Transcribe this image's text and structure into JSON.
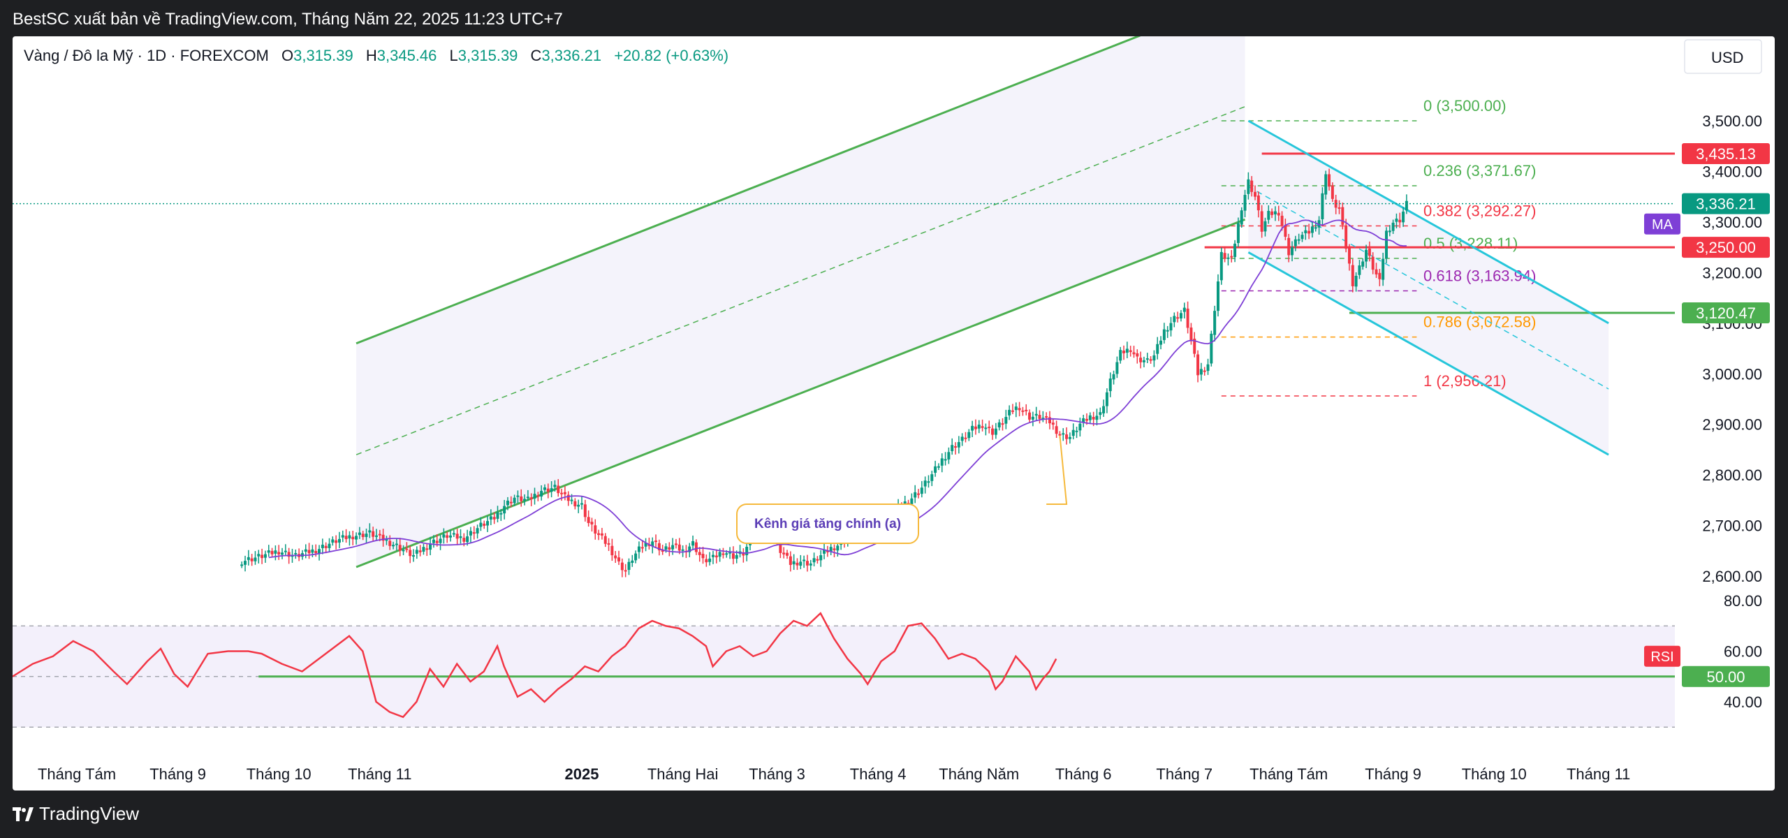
{
  "header": {
    "published_by": "BestSC xuất bản về TradingView.com, Tháng Năm 22, 2025 11:23 UTC+7"
  },
  "footer": {
    "brand": "TradingView"
  },
  "legend": {
    "symbol": "Vàng / Đô la Mỹ · 1D · FOREXCOM",
    "o_label": "O",
    "o_value": "3,315.39",
    "h_label": "H",
    "h_value": "3,345.46",
    "l_label": "L",
    "l_value": "3,315.39",
    "c_label": "C",
    "c_value": "3,336.21",
    "change": "+20.82 (+0.63%)"
  },
  "currency_button": "USD",
  "colors": {
    "up": "#089981",
    "down": "#f23645",
    "ma": "#7e3fd6",
    "channel": "#4caf50",
    "down_channel": "#26c6da",
    "fib_green": "#4caf50",
    "fib_red": "#f23645",
    "fib_purple": "#9c27b0",
    "fib_orange": "#ff9800",
    "rsi": "#f23645",
    "rsi_mid": "#4caf50"
  },
  "annotation": {
    "text": "Kênh giá tăng chính (a)"
  },
  "fib_levels": [
    {
      "label": "0 (3,500.00)",
      "price": 3500,
      "color": "#4caf50"
    },
    {
      "label": "0.236 (3,371.67)",
      "price": 3371.67,
      "color": "#4caf50"
    },
    {
      "label": "0.382 (3,292.27)",
      "price": 3292.27,
      "color": "#f23645"
    },
    {
      "label": "0.5 (3,228.11)",
      "price": 3228.11,
      "color": "#4caf50"
    },
    {
      "label": "0.618 (3,163.94)",
      "price": 3163.94,
      "color": "#9c27b0"
    },
    {
      "label": "0.786 (3,072.58)",
      "price": 3072.58,
      "color": "#ff9800"
    },
    {
      "label": "1 (2,956.21)",
      "price": 2956.21,
      "color": "#f23645"
    }
  ],
  "price_tags": [
    {
      "label": "3,435.13",
      "price": 3435.13,
      "color": "#f23645"
    },
    {
      "label": "3,336.21",
      "price": 3336.21,
      "color": "#089981"
    },
    {
      "label": "3,250.00",
      "price": 3250.0,
      "color": "#f23645"
    },
    {
      "label": "3,120.47",
      "price": 3120.47,
      "color": "#4caf50"
    }
  ],
  "ma_badge": "MA",
  "rsi_badge": "RSI",
  "rsi_tag": {
    "label": "50.00",
    "value": 50
  },
  "chart_data": [
    {
      "type": "candlestick",
      "title": "Vàng / Đô la Mỹ · 1D · FOREXCOM",
      "y_ticks": [
        "3,500.00",
        "3,400.00",
        "3,300.00",
        "3,200.00",
        "3,100.00",
        "3,000.00",
        "2,900.00",
        "2,800.00",
        "2,700.00",
        "2,600.00"
      ],
      "y_tick_values": [
        3500,
        3400,
        3300,
        3200,
        3100,
        3000,
        2900,
        2800,
        2700,
        2600
      ],
      "x_ticks": [
        "Tháng Tám",
        "Tháng 9",
        "Tháng 10",
        "Tháng 11",
        "2025",
        "Tháng Hai",
        "Tháng 3",
        "Tháng 4",
        "Tháng Năm",
        "Tháng 6",
        "Tháng 7",
        "Tháng Tám",
        "Tháng 9",
        "Tháng 10",
        "Tháng 11"
      ],
      "x_tick_bold": [
        false,
        false,
        false,
        false,
        true,
        false,
        false,
        false,
        false,
        false,
        false,
        false,
        false,
        false,
        false
      ],
      "x_tick_days": [
        0,
        30,
        60,
        90,
        150,
        180,
        208,
        238,
        268,
        299,
        329,
        360,
        391,
        421,
        452
      ],
      "ylim": [
        2565,
        3670
      ],
      "series": [
        {
          "name": "Vàng / Đô la Mỹ",
          "close_path": [
            [
              49,
              2630
            ],
            [
              55,
              2640
            ],
            [
              60,
              2650
            ],
            [
              65,
              2640
            ],
            [
              70,
              2650
            ],
            [
              72,
              2655
            ],
            [
              77,
              2670
            ],
            [
              82,
              2680
            ],
            [
              87,
              2685
            ],
            [
              92,
              2670
            ],
            [
              95,
              2660
            ],
            [
              100,
              2640
            ],
            [
              105,
              2665
            ],
            [
              110,
              2680
            ],
            [
              115,
              2675
            ],
            [
              120,
              2700
            ],
            [
              124,
              2715
            ],
            [
              127,
              2740
            ],
            [
              130,
              2755
            ],
            [
              134,
              2750
            ],
            [
              138,
              2770
            ],
            [
              142,
              2775
            ],
            [
              145,
              2755
            ],
            [
              148,
              2745
            ],
            [
              150,
              2740
            ],
            [
              152,
              2705
            ],
            [
              155,
              2680
            ],
            [
              158,
              2660
            ],
            [
              161,
              2625
            ],
            [
              163,
              2610
            ],
            [
              165,
              2635
            ],
            [
              168,
              2660
            ],
            [
              171,
              2670
            ],
            [
              174,
              2650
            ],
            [
              177,
              2660
            ],
            [
              180,
              2650
            ],
            [
              183,
              2665
            ],
            [
              186,
              2630
            ],
            [
              189,
              2635
            ],
            [
              192,
              2650
            ],
            [
              195,
              2640
            ],
            [
              198,
              2645
            ],
            [
              201,
              2680
            ],
            [
              204,
              2700
            ],
            [
              206,
              2700
            ],
            [
              209,
              2650
            ],
            [
              212,
              2625
            ],
            [
              215,
              2630
            ],
            [
              218,
              2625
            ],
            [
              221,
              2640
            ],
            [
              224,
              2655
            ],
            [
              227,
              2665
            ],
            [
              230,
              2680
            ],
            [
              233,
              2690
            ],
            [
              236,
              2685
            ],
            [
              239,
              2700
            ],
            [
              242,
              2720
            ],
            [
              245,
              2740
            ],
            [
              248,
              2755
            ],
            [
              251,
              2775
            ],
            [
              254,
              2800
            ],
            [
              257,
              2830
            ],
            [
              260,
              2855
            ],
            [
              263,
              2870
            ],
            [
              266,
              2890
            ],
            [
              269,
              2900
            ],
            [
              272,
              2885
            ],
            [
              275,
              2905
            ],
            [
              278,
              2930
            ],
            [
              280,
              2935
            ],
            [
              283,
              2915
            ],
            [
              286,
              2915
            ],
            [
              289,
              2905
            ],
            [
              292,
              2880
            ],
            [
              295,
              2875
            ],
            [
              298,
              2900
            ],
            [
              301,
              2915
            ],
            [
              304,
              2920
            ],
            [
              307,
              2985
            ],
            [
              310,
              3040
            ],
            [
              313,
              3050
            ],
            [
              315,
              3030
            ],
            [
              318,
              3025
            ],
            [
              320,
              3035
            ],
            [
              323,
              3085
            ],
            [
              326,
              3110
            ],
            [
              329,
              3125
            ],
            [
              331,
              3065
            ],
            [
              333,
              3000
            ],
            [
              336,
              3020
            ],
            [
              338,
              3130
            ],
            [
              340,
              3235
            ],
            [
              343,
              3225
            ],
            [
              346,
              3330
            ],
            [
              348,
              3380
            ],
            [
              350,
              3350
            ],
            [
              352,
              3285
            ],
            [
              354,
              3315
            ],
            [
              357,
              3320
            ],
            [
              360,
              3240
            ],
            [
              363,
              3270
            ],
            [
              366,
              3280
            ],
            [
              369,
              3305
            ],
            [
              371,
              3400
            ],
            [
              373,
              3340
            ],
            [
              375,
              3325
            ],
            [
              377,
              3250
            ],
            [
              379,
              3180
            ],
            [
              381,
              3210
            ],
            [
              383,
              3245
            ],
            [
              385,
              3210
            ],
            [
              387,
              3180
            ],
            [
              389,
              3280
            ],
            [
              391,
              3300
            ],
            [
              393,
              3305
            ],
            [
              395,
              3336
            ]
          ]
        },
        {
          "name": "MA",
          "values": "Moving average (purple line)"
        }
      ]
    },
    {
      "type": "line",
      "title": "RSI",
      "y_ticks": [
        "80.00",
        "60.00",
        "40.00"
      ],
      "y_tick_values": [
        80,
        60,
        40
      ],
      "ylim": [
        30,
        85
      ],
      "levels": [
        70,
        50,
        30
      ],
      "series": [
        {
          "name": "RSI",
          "points": [
            [
              0,
              50
            ],
            [
              6,
              55
            ],
            [
              12,
              58
            ],
            [
              18,
              64
            ],
            [
              24,
              60
            ],
            [
              30,
              52
            ],
            [
              34,
              47
            ],
            [
              40,
              56
            ],
            [
              44,
              61
            ],
            [
              48,
              51
            ],
            [
              52,
              46
            ],
            [
              58,
              59
            ],
            [
              64,
              60
            ],
            [
              70,
              60
            ],
            [
              74,
              59
            ],
            [
              80,
              55
            ],
            [
              86,
              52
            ],
            [
              92,
              58
            ],
            [
              96,
              62
            ],
            [
              100,
              66
            ],
            [
              104,
              60
            ],
            [
              106,
              50
            ],
            [
              108,
              40
            ],
            [
              112,
              36
            ],
            [
              116,
              34
            ],
            [
              120,
              40
            ],
            [
              124,
              53
            ],
            [
              128,
              46
            ],
            [
              132,
              55
            ],
            [
              136,
              48
            ],
            [
              140,
              52
            ],
            [
              144,
              62
            ],
            [
              146,
              54
            ],
            [
              150,
              42
            ],
            [
              154,
              45
            ],
            [
              158,
              40
            ],
            [
              162,
              45
            ],
            [
              166,
              49
            ],
            [
              170,
              54
            ],
            [
              174,
              52
            ],
            [
              178,
              58
            ],
            [
              182,
              62
            ],
            [
              186,
              69
            ],
            [
              190,
              72
            ],
            [
              194,
              70
            ],
            [
              198,
              69
            ],
            [
              202,
              66
            ],
            [
              206,
              62
            ],
            [
              208,
              54
            ],
            [
              212,
              60
            ],
            [
              216,
              62
            ],
            [
              220,
              58
            ],
            [
              224,
              60
            ],
            [
              228,
              67
            ],
            [
              232,
              72
            ],
            [
              236,
              70
            ],
            [
              240,
              75
            ],
            [
              244,
              65
            ],
            [
              248,
              57
            ],
            [
              252,
              51
            ],
            [
              254,
              47
            ],
            [
              258,
              56
            ],
            [
              262,
              60
            ],
            [
              266,
              70
            ],
            [
              270,
              71
            ],
            [
              274,
              65
            ],
            [
              278,
              57
            ],
            [
              282,
              59
            ],
            [
              286,
              57
            ],
            [
              290,
              52
            ],
            [
              292,
              45
            ],
            [
              294,
              48
            ],
            [
              298,
              58
            ],
            [
              300,
              55
            ],
            [
              302,
              52
            ],
            [
              304,
              45
            ],
            [
              306,
              49
            ],
            [
              308,
              52
            ],
            [
              310,
              57
            ]
          ]
        }
      ]
    }
  ]
}
